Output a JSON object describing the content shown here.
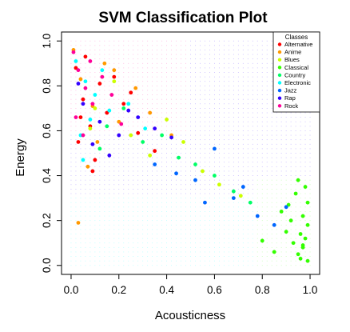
{
  "chart_data": {
    "type": "scatter",
    "title": "SVM Classification Plot",
    "xlabel": "Acousticness",
    "ylabel": "Energy",
    "xlim": [
      -0.04,
      1.04
    ],
    "ylim": [
      -0.04,
      1.04
    ],
    "x_ticks": [
      "0.0",
      "0.2",
      "0.4",
      "0.6",
      "0.8",
      "1.0"
    ],
    "y_ticks": [
      "0.0",
      "0.2",
      "0.4",
      "0.6",
      "0.8",
      "1.0"
    ],
    "legend": {
      "title": "Classes",
      "placement": "top-right",
      "entries": [
        {
          "name": "Alternative",
          "color": "#ff0000"
        },
        {
          "name": "Anime",
          "color": "#ff9900"
        },
        {
          "name": "Blues",
          "color": "#ccff00"
        },
        {
          "name": "Classical",
          "color": "#33ff00"
        },
        {
          "name": "Country",
          "color": "#00ff66"
        },
        {
          "name": "Electronic",
          "color": "#00ffff"
        },
        {
          "name": "Jazz",
          "color": "#0066ff"
        },
        {
          "name": "Rap",
          "color": "#3300ff"
        },
        {
          "name": "Rock",
          "color": "#ff0099"
        }
      ]
    },
    "grid": false,
    "series": [
      {
        "name": "Alternative",
        "x": [
          0.02,
          0.05,
          0.08,
          0.12,
          0.03,
          0.15,
          0.22,
          0.06,
          0.1,
          0.28,
          0.04,
          0.18,
          0.35,
          0.09,
          0.25
        ],
        "y": [
          0.88,
          0.74,
          0.62,
          0.81,
          0.55,
          0.68,
          0.72,
          0.93,
          0.47,
          0.59,
          0.66,
          0.84,
          0.51,
          0.42,
          0.77
        ]
      },
      {
        "name": "Anime",
        "x": [
          0.01,
          0.04,
          0.09,
          0.14,
          0.2,
          0.03,
          0.27,
          0.11,
          0.33,
          0.07,
          0.42,
          0.18
        ],
        "y": [
          0.96,
          0.83,
          0.71,
          0.9,
          0.64,
          0.19,
          0.79,
          0.55,
          0.68,
          0.44,
          0.58,
          0.87
        ]
      },
      {
        "name": "Blues",
        "x": [
          0.1,
          0.25,
          0.4,
          0.55,
          0.18,
          0.33,
          0.62,
          0.47,
          0.08,
          0.71
        ],
        "y": [
          0.7,
          0.58,
          0.65,
          0.42,
          0.82,
          0.49,
          0.36,
          0.55,
          0.61,
          0.31
        ]
      },
      {
        "name": "Classical",
        "x": [
          0.95,
          0.98,
          0.92,
          0.97,
          0.99,
          0.9,
          0.96,
          0.88,
          0.94,
          0.99,
          0.93,
          0.97,
          0.85,
          0.98,
          0.91,
          0.96,
          0.99,
          0.8,
          0.95,
          0.97
        ],
        "y": [
          0.05,
          0.12,
          0.2,
          0.08,
          0.28,
          0.15,
          0.03,
          0.24,
          0.32,
          0.18,
          0.1,
          0.22,
          0.06,
          0.35,
          0.27,
          0.14,
          0.02,
          0.11,
          0.38,
          0.09
        ]
      },
      {
        "name": "Country",
        "x": [
          0.15,
          0.3,
          0.45,
          0.6,
          0.22,
          0.38,
          0.52,
          0.68,
          0.75,
          0.12
        ],
        "y": [
          0.62,
          0.55,
          0.48,
          0.4,
          0.7,
          0.58,
          0.45,
          0.33,
          0.28,
          0.52
        ]
      },
      {
        "name": "Electronic",
        "x": [
          0.02,
          0.06,
          0.1,
          0.16,
          0.04,
          0.24,
          0.08,
          0.31,
          0.13,
          0.05
        ],
        "y": [
          0.91,
          0.82,
          0.76,
          0.69,
          0.58,
          0.72,
          0.65,
          0.61,
          0.87,
          0.47
        ]
      },
      {
        "name": "Jazz",
        "x": [
          0.35,
          0.52,
          0.68,
          0.78,
          0.6,
          0.44,
          0.85,
          0.72,
          0.9,
          0.56
        ],
        "y": [
          0.45,
          0.38,
          0.3,
          0.22,
          0.52,
          0.41,
          0.18,
          0.35,
          0.26,
          0.28
        ]
      },
      {
        "name": "Rap",
        "x": [
          0.05,
          0.12,
          0.2,
          0.28,
          0.09,
          0.35,
          0.16,
          0.42,
          0.24,
          0.03
        ],
        "y": [
          0.72,
          0.64,
          0.58,
          0.66,
          0.54,
          0.61,
          0.49,
          0.57,
          0.69,
          0.81
        ]
      },
      {
        "name": "Rock",
        "x": [
          0.01,
          0.03,
          0.06,
          0.09,
          0.02,
          0.13,
          0.05,
          0.17,
          0.08,
          0.21
        ],
        "y": [
          0.95,
          0.87,
          0.79,
          0.72,
          0.66,
          0.84,
          0.58,
          0.76,
          0.91,
          0.63
        ]
      }
    ]
  }
}
